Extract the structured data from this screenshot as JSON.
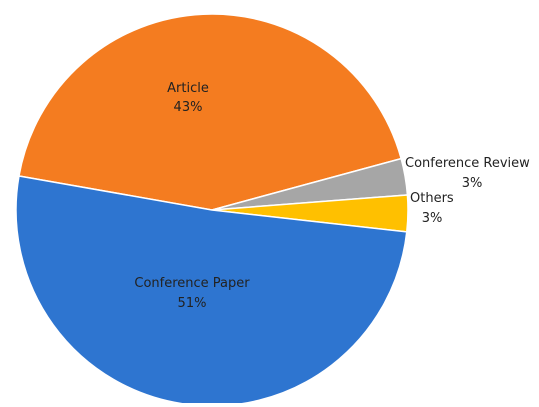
{
  "chart_data": {
    "type": "pie",
    "categories": [
      "Article",
      "Conference Review",
      "Others",
      "Conference Paper"
    ],
    "values": [
      43,
      3,
      3,
      51
    ],
    "labels": [
      "43%",
      "3%",
      "3%",
      "51%"
    ],
    "colors": [
      "#F47C20",
      "#A6A6A6",
      "#FFC000",
      "#2E75D0"
    ],
    "title": "",
    "legend": "none"
  }
}
